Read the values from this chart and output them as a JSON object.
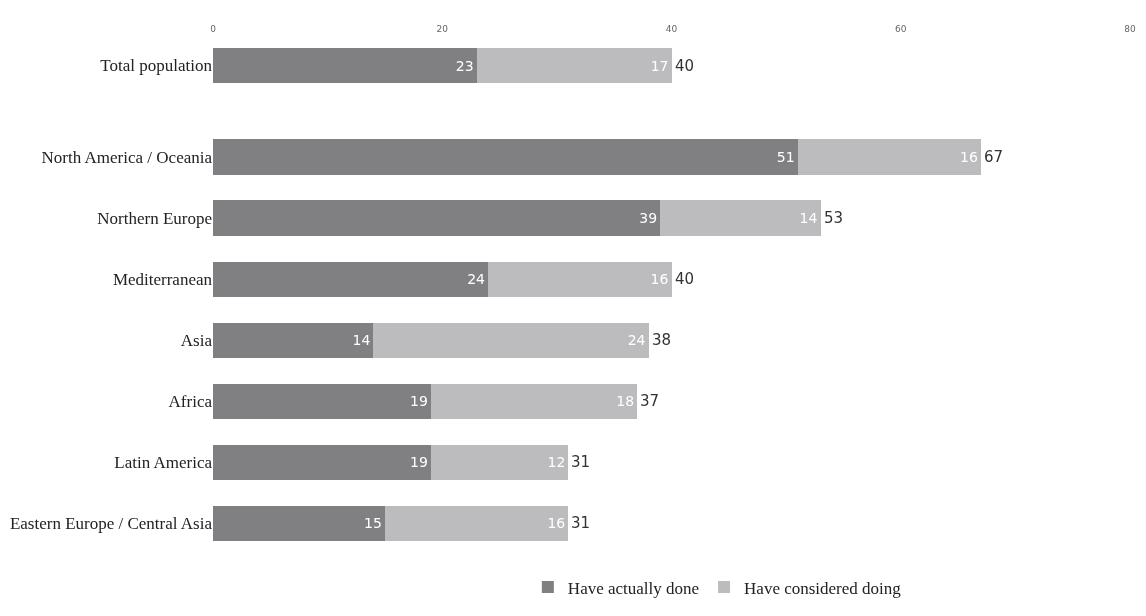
{
  "chart_data": {
    "type": "bar",
    "orientation": "horizontal",
    "stacked": true,
    "categories": [
      "Total population",
      "North America / Oceania",
      "Northern Europe",
      "Mediterranean",
      "Asia",
      "Africa",
      "Latin America",
      "Eastern Europe / Central Asia"
    ],
    "series": [
      {
        "name": "Have actually done",
        "color": "#808083",
        "values": [
          23,
          51,
          39,
          24,
          14,
          19,
          19,
          15
        ]
      },
      {
        "name": "Have considered doing",
        "color": "#bcbcbe",
        "values": [
          17,
          16,
          14,
          16,
          24,
          18,
          12,
          16
        ]
      }
    ],
    "totals": [
      "40",
      "67",
      "53",
      "40",
      "38",
      "37",
      "31",
      "31"
    ],
    "data_labels": true,
    "xlim": [
      0,
      80
    ],
    "xticks": [
      0,
      20,
      40,
      60,
      80
    ],
    "legend": "bottom"
  }
}
